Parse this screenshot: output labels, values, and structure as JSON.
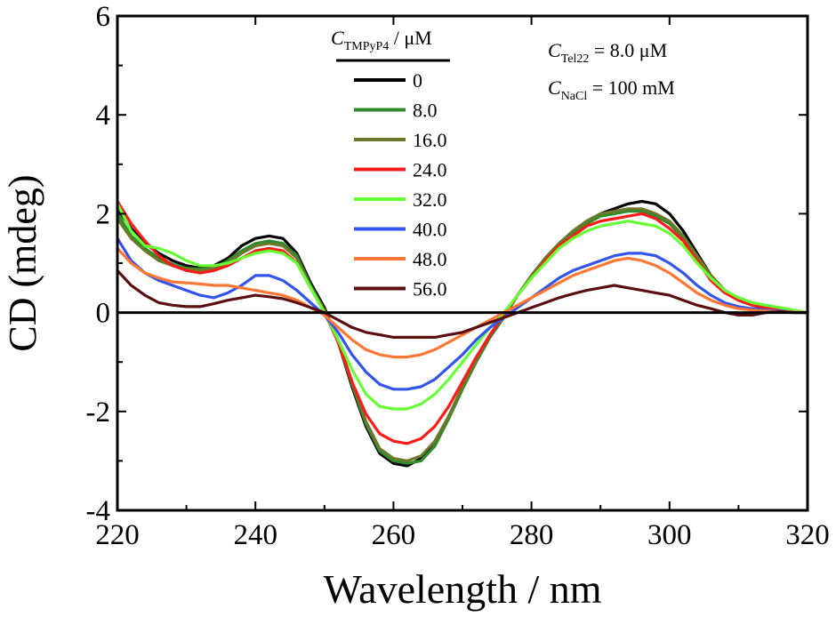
{
  "chart_data": {
    "type": "line",
    "xlabel": "Wavelength / nm",
    "ylabel": "CD (mdeg)",
    "xlim": [
      220,
      320
    ],
    "ylim": [
      -4,
      6
    ],
    "xticks": [
      220,
      240,
      260,
      280,
      300,
      320
    ],
    "yticks": [
      -4,
      -2,
      0,
      2,
      4,
      6
    ],
    "legend": {
      "title_symbol": "C",
      "title_sub": "TMPyP4",
      "title_unit": " / μM",
      "placement": "top-center"
    },
    "annotations": [
      {
        "symbol": "C",
        "sub": "Tel22",
        "text": " = 8.0 μM"
      },
      {
        "symbol": "C",
        "sub": "NaCl",
        "text": " = 100 mM"
      }
    ],
    "x": [
      220,
      222,
      224,
      226,
      228,
      230,
      232,
      234,
      236,
      238,
      240,
      242,
      244,
      246,
      248,
      250,
      252,
      254,
      256,
      258,
      260,
      262,
      264,
      266,
      268,
      270,
      272,
      274,
      276,
      278,
      280,
      282,
      284,
      286,
      288,
      290,
      292,
      294,
      296,
      298,
      300,
      302,
      304,
      306,
      308,
      310,
      312,
      314,
      316,
      318,
      320
    ],
    "series": [
      {
        "name": "0",
        "color": "#000000",
        "values": [
          2.1,
          1.7,
          1.4,
          1.2,
          1.05,
          0.95,
          0.9,
          0.95,
          1.1,
          1.35,
          1.5,
          1.55,
          1.5,
          1.2,
          0.6,
          0.1,
          -0.6,
          -1.5,
          -2.3,
          -2.85,
          -3.05,
          -3.1,
          -2.95,
          -2.6,
          -2.1,
          -1.5,
          -0.95,
          -0.45,
          -0.05,
          0.35,
          0.75,
          1.1,
          1.4,
          1.65,
          1.85,
          2.0,
          2.1,
          2.2,
          2.25,
          2.2,
          2.0,
          1.65,
          1.2,
          0.75,
          0.45,
          0.25,
          0.15,
          0.08,
          0.04,
          0.02,
          0.0
        ]
      },
      {
        "name": "8.0",
        "color": "#2e8b2e",
        "values": [
          2.0,
          1.55,
          1.3,
          1.1,
          0.98,
          0.9,
          0.88,
          0.9,
          1.05,
          1.25,
          1.4,
          1.45,
          1.4,
          1.15,
          0.55,
          0.05,
          -0.6,
          -1.45,
          -2.25,
          -2.8,
          -3.0,
          -3.05,
          -3.0,
          -2.7,
          -2.15,
          -1.55,
          -1.0,
          -0.5,
          -0.1,
          0.35,
          0.75,
          1.1,
          1.4,
          1.6,
          1.8,
          1.95,
          2.0,
          2.05,
          2.05,
          1.95,
          1.8,
          1.5,
          1.1,
          0.7,
          0.45,
          0.3,
          0.2,
          0.12,
          0.06,
          0.03,
          0.0
        ]
      },
      {
        "name": "16.0",
        "color": "#6b7a2a",
        "values": [
          1.9,
          1.5,
          1.25,
          1.05,
          0.95,
          0.88,
          0.85,
          0.9,
          1.0,
          1.2,
          1.35,
          1.4,
          1.35,
          1.1,
          0.5,
          0.05,
          -0.55,
          -1.4,
          -2.2,
          -2.75,
          -2.95,
          -3.0,
          -2.9,
          -2.6,
          -2.1,
          -1.5,
          -0.95,
          -0.45,
          -0.05,
          0.35,
          0.75,
          1.1,
          1.4,
          1.65,
          1.85,
          2.0,
          2.05,
          2.1,
          2.1,
          2.0,
          1.85,
          1.55,
          1.15,
          0.75,
          0.45,
          0.3,
          0.18,
          0.1,
          0.05,
          0.02,
          0.0
        ]
      },
      {
        "name": "24.0",
        "color": "#ff1a1a",
        "values": [
          2.25,
          1.8,
          1.45,
          1.15,
          0.95,
          0.85,
          0.8,
          0.85,
          0.95,
          1.1,
          1.25,
          1.3,
          1.25,
          1.0,
          0.5,
          0.0,
          -0.6,
          -1.4,
          -2.05,
          -2.45,
          -2.6,
          -2.65,
          -2.55,
          -2.3,
          -1.9,
          -1.4,
          -0.9,
          -0.45,
          -0.05,
          0.35,
          0.7,
          1.05,
          1.35,
          1.55,
          1.75,
          1.85,
          1.9,
          1.95,
          2.0,
          1.9,
          1.7,
          1.45,
          1.05,
          0.65,
          0.4,
          0.25,
          0.15,
          0.1,
          0.05,
          0.02,
          0.0
        ]
      },
      {
        "name": "32.0",
        "color": "#66ff33",
        "values": [
          2.2,
          1.65,
          1.35,
          1.3,
          1.2,
          1.05,
          0.95,
          0.95,
          1.0,
          1.1,
          1.2,
          1.25,
          1.2,
          1.0,
          0.5,
          0.0,
          -0.55,
          -1.15,
          -1.65,
          -1.9,
          -1.95,
          -1.95,
          -1.85,
          -1.65,
          -1.35,
          -1.0,
          -0.65,
          -0.3,
          0.0,
          0.35,
          0.7,
          1.0,
          1.3,
          1.5,
          1.65,
          1.75,
          1.8,
          1.85,
          1.8,
          1.75,
          1.6,
          1.35,
          1.0,
          0.7,
          0.45,
          0.3,
          0.2,
          0.15,
          0.1,
          0.05,
          0.0
        ]
      },
      {
        "name": "40.0",
        "color": "#3355ee",
        "values": [
          1.5,
          1.05,
          0.8,
          0.65,
          0.55,
          0.45,
          0.35,
          0.3,
          0.4,
          0.55,
          0.75,
          0.75,
          0.65,
          0.45,
          0.2,
          -0.05,
          -0.4,
          -0.85,
          -1.2,
          -1.45,
          -1.55,
          -1.55,
          -1.5,
          -1.35,
          -1.1,
          -0.85,
          -0.55,
          -0.3,
          -0.1,
          0.1,
          0.3,
          0.5,
          0.7,
          0.85,
          0.95,
          1.05,
          1.15,
          1.2,
          1.2,
          1.15,
          1.0,
          0.8,
          0.55,
          0.35,
          0.2,
          0.12,
          0.08,
          0.05,
          0.03,
          0.01,
          0.0
        ]
      },
      {
        "name": "48.0",
        "color": "#ff7733",
        "values": [
          1.3,
          1.0,
          0.8,
          0.7,
          0.62,
          0.6,
          0.58,
          0.55,
          0.55,
          0.5,
          0.45,
          0.4,
          0.35,
          0.25,
          0.1,
          -0.05,
          -0.3,
          -0.55,
          -0.75,
          -0.85,
          -0.9,
          -0.9,
          -0.85,
          -0.75,
          -0.6,
          -0.45,
          -0.3,
          -0.15,
          0.0,
          0.15,
          0.3,
          0.45,
          0.6,
          0.75,
          0.85,
          0.95,
          1.05,
          1.1,
          1.05,
          0.95,
          0.8,
          0.6,
          0.4,
          0.25,
          0.15,
          0.08,
          0.05,
          0.03,
          0.02,
          0.01,
          0.0
        ]
      },
      {
        "name": "56.0",
        "color": "#5a1010",
        "values": [
          0.85,
          0.55,
          0.35,
          0.2,
          0.15,
          0.12,
          0.12,
          0.18,
          0.25,
          0.3,
          0.35,
          0.32,
          0.28,
          0.2,
          0.1,
          0.0,
          -0.15,
          -0.3,
          -0.4,
          -0.45,
          -0.5,
          -0.5,
          -0.5,
          -0.5,
          -0.45,
          -0.4,
          -0.3,
          -0.2,
          -0.1,
          0.0,
          0.1,
          0.2,
          0.3,
          0.38,
          0.45,
          0.5,
          0.55,
          0.5,
          0.45,
          0.4,
          0.35,
          0.25,
          0.15,
          0.08,
          0.0,
          -0.05,
          -0.05,
          0.0,
          0.02,
          0.0,
          0.0
        ]
      }
    ]
  }
}
